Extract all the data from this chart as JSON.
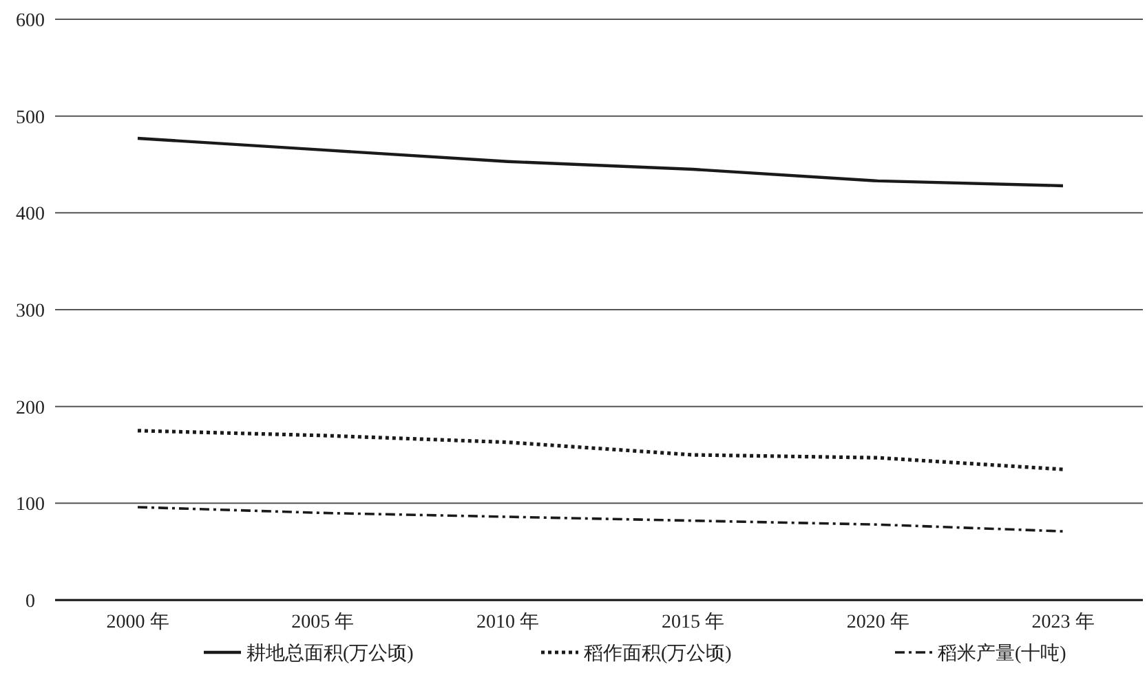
{
  "chart_data": {
    "type": "line",
    "categories": [
      "2000 年",
      "2005 年",
      "2010 年",
      "2015 年",
      "2020 年",
      "2023 年"
    ],
    "series": [
      {
        "name": "耕地总面积(万公顷)",
        "color": "#1a1a1a",
        "line_style": "solid",
        "values": [
          477,
          465,
          453,
          445,
          433,
          428
        ]
      },
      {
        "name": "稻作面积(万公顷)",
        "color": "#1a1a1a",
        "line_style": "dotted",
        "values": [
          175,
          170,
          163,
          150,
          147,
          135
        ]
      },
      {
        "name": "稻米产量(十吨)",
        "color": "#1a1a1a",
        "line_style": "dashed",
        "values": [
          96,
          90,
          86,
          82,
          78,
          71
        ]
      }
    ],
    "ylim": [
      0,
      600
    ],
    "yticks": [
      0,
      100,
      200,
      300,
      400,
      500,
      600
    ],
    "grid": "y",
    "legend": "bottom",
    "marker": "none"
  }
}
